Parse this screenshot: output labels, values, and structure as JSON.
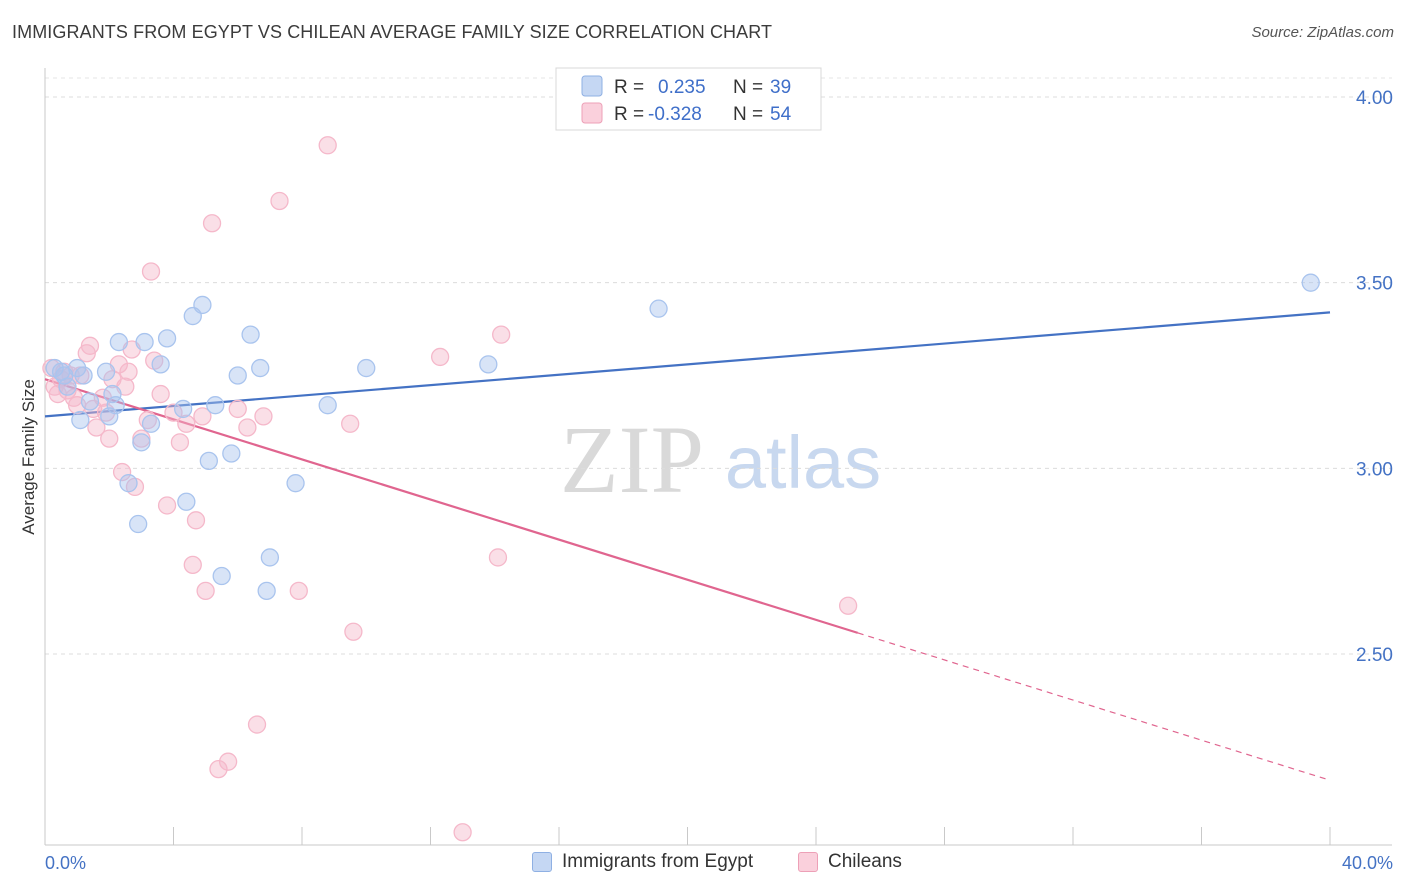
{
  "header": {
    "title": "IMMIGRANTS FROM EGYPT VS CHILEAN AVERAGE FAMILY SIZE CORRELATION CHART",
    "source": "Source: ZipAtlas.com"
  },
  "watermark": {
    "zip": "ZIP",
    "atlas": "atlas"
  },
  "stats_legend": {
    "r_label": "R =",
    "n_label": "N =",
    "rows": [
      {
        "r": "0.235",
        "n": "39",
        "color": "#a9c4ee"
      },
      {
        "r": "-0.328",
        "n": "54",
        "color": "#f5b8ca"
      }
    ]
  },
  "chart_data": {
    "type": "scatter",
    "title": "IMMIGRANTS FROM EGYPT VS CHILEAN AVERAGE FAMILY SIZE CORRELATION CHART",
    "xlabel": "",
    "ylabel": "Average Family Size",
    "xlim": [
      0,
      40
    ],
    "ylim": [
      2.0,
      4.08
    ],
    "x_tick_labels": [
      "0.0%",
      "40.0%"
    ],
    "y_ticks": [
      2.5,
      3.0,
      3.5,
      4.0
    ],
    "y_tick_labels": [
      "2.50",
      "3.00",
      "3.50",
      "4.00"
    ],
    "grid": true,
    "legend_position": "top-center",
    "series": [
      {
        "name": "Immigrants from Egypt",
        "color": "#4472c4",
        "fill": "#a9c4ee",
        "trend": {
          "x": [
            0,
            40
          ],
          "y": [
            3.14,
            3.42
          ],
          "dashed_from": null
        },
        "points": [
          [
            0.3,
            3.27
          ],
          [
            0.5,
            3.26
          ],
          [
            0.6,
            3.25
          ],
          [
            0.7,
            3.22
          ],
          [
            1.0,
            3.27
          ],
          [
            1.2,
            3.25
          ],
          [
            1.1,
            3.13
          ],
          [
            1.4,
            3.18
          ],
          [
            1.9,
            3.26
          ],
          [
            2.3,
            3.34
          ],
          [
            2.0,
            3.14
          ],
          [
            2.2,
            3.17
          ],
          [
            2.1,
            3.2
          ],
          [
            2.6,
            2.96
          ],
          [
            2.9,
            2.85
          ],
          [
            3.0,
            3.07
          ],
          [
            3.1,
            3.34
          ],
          [
            3.3,
            3.12
          ],
          [
            3.6,
            3.28
          ],
          [
            3.8,
            3.35
          ],
          [
            4.3,
            3.16
          ],
          [
            4.4,
            2.91
          ],
          [
            4.6,
            3.41
          ],
          [
            4.9,
            3.44
          ],
          [
            5.1,
            3.02
          ],
          [
            5.3,
            3.17
          ],
          [
            5.5,
            2.71
          ],
          [
            5.8,
            3.04
          ],
          [
            6.0,
            3.25
          ],
          [
            6.4,
            3.36
          ],
          [
            6.7,
            3.27
          ],
          [
            6.9,
            2.67
          ],
          [
            7.0,
            2.76
          ],
          [
            7.8,
            2.96
          ],
          [
            8.8,
            3.17
          ],
          [
            10.0,
            3.27
          ],
          [
            13.8,
            3.28
          ],
          [
            19.1,
            3.43
          ],
          [
            39.4,
            3.5
          ]
        ]
      },
      {
        "name": "Chileans",
        "color": "#e0658f",
        "fill": "#f5b8ca",
        "trend": {
          "x": [
            0,
            40
          ],
          "y": [
            3.24,
            2.16
          ],
          "dashed_from": 25.3
        },
        "points": [
          [
            0.2,
            3.27
          ],
          [
            0.3,
            3.22
          ],
          [
            0.4,
            3.2
          ],
          [
            0.5,
            3.24
          ],
          [
            0.6,
            3.26
          ],
          [
            0.8,
            3.25
          ],
          [
            0.9,
            3.19
          ],
          [
            1.0,
            3.17
          ],
          [
            1.1,
            3.25
          ],
          [
            1.3,
            3.31
          ],
          [
            1.4,
            3.33
          ],
          [
            1.5,
            3.16
          ],
          [
            1.6,
            3.11
          ],
          [
            1.8,
            3.19
          ],
          [
            1.9,
            3.15
          ],
          [
            2.0,
            3.08
          ],
          [
            2.1,
            3.24
          ],
          [
            2.3,
            3.28
          ],
          [
            2.4,
            2.99
          ],
          [
            2.5,
            3.22
          ],
          [
            2.6,
            3.26
          ],
          [
            2.7,
            3.32
          ],
          [
            2.8,
            2.95
          ],
          [
            3.0,
            3.08
          ],
          [
            3.2,
            3.13
          ],
          [
            3.3,
            3.53
          ],
          [
            3.4,
            3.29
          ],
          [
            3.6,
            3.2
          ],
          [
            3.8,
            2.9
          ],
          [
            4.0,
            3.15
          ],
          [
            4.2,
            3.07
          ],
          [
            4.4,
            3.12
          ],
          [
            4.6,
            2.74
          ],
          [
            4.7,
            2.86
          ],
          [
            4.9,
            3.14
          ],
          [
            5.0,
            2.67
          ],
          [
            5.2,
            3.66
          ],
          [
            5.4,
            2.19
          ],
          [
            5.7,
            2.21
          ],
          [
            6.0,
            3.16
          ],
          [
            6.3,
            3.11
          ],
          [
            6.6,
            2.31
          ],
          [
            6.8,
            3.14
          ],
          [
            7.3,
            3.72
          ],
          [
            7.9,
            2.67
          ],
          [
            8.8,
            3.87
          ],
          [
            9.5,
            3.12
          ],
          [
            9.6,
            2.56
          ],
          [
            12.3,
            3.3
          ],
          [
            13.0,
            2.02
          ],
          [
            14.1,
            2.76
          ],
          [
            14.2,
            3.36
          ],
          [
            25.0,
            2.63
          ],
          [
            0.7,
            3.21
          ]
        ]
      }
    ]
  }
}
